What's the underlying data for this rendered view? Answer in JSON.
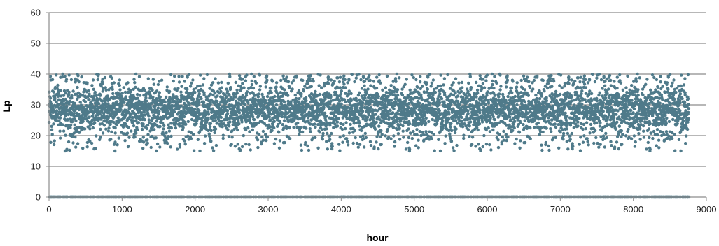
{
  "chart_data": {
    "type": "scatter",
    "title": "",
    "xlabel": "hour",
    "ylabel": "Lp",
    "xlim": [
      0,
      9000
    ],
    "ylim": [
      0,
      60
    ],
    "x_ticks": [
      0,
      1000,
      2000,
      3000,
      4000,
      5000,
      6000,
      7000,
      8000,
      9000
    ],
    "y_ticks": [
      0,
      10,
      20,
      30,
      40,
      50,
      60
    ],
    "grid": "horizontal",
    "legend": "none",
    "marker_color": "#4f7a8a",
    "series": [
      {
        "points_note": "hourly values 0-8760",
        "x_range": [
          0,
          8760
        ],
        "y_typical": [
          22,
          35
        ],
        "y_extremes": [
          15,
          40
        ],
        "zero_band": true
      }
    ]
  },
  "colors": {
    "gridline": "#8c8c8c",
    "axis": "#8c8c8c",
    "marker": "#4f7a8a"
  }
}
